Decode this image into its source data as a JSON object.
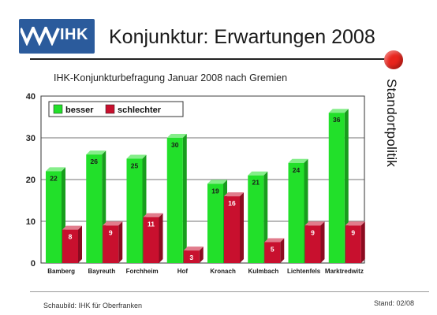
{
  "header": {
    "logo_text": "IHK",
    "title": "Konjunktur: Erwartungen 2008",
    "side_label": "Standortpolitik"
  },
  "colors": {
    "besser": "#22e02a",
    "schlechter": "#c8102e",
    "accent_dot": "#e8241c",
    "logo_bg": "#2b5b9c"
  },
  "chart_data": {
    "type": "bar",
    "title": "IHK-Konjunkturbefragung Januar 2008 nach Gremien",
    "categories": [
      "Bamberg",
      "Bayreuth",
      "Forchheim",
      "Hof",
      "Kronach",
      "Kulmbach",
      "Lichtenfels",
      "Marktredwitz"
    ],
    "series": [
      {
        "name": "besser",
        "values": [
          22,
          26,
          25,
          30,
          19,
          21,
          24,
          36
        ]
      },
      {
        "name": "schlechter",
        "values": [
          8,
          9,
          11,
          3,
          16,
          5,
          9,
          9
        ]
      }
    ],
    "ylim": [
      0,
      40
    ],
    "yticks": [
      0,
      10,
      20,
      30,
      40
    ],
    "grid": true,
    "legend_position": "top-left",
    "bar_style": "3d"
  },
  "footer": {
    "source": "Schaubild: IHK für Oberfranken",
    "stand": "Stand: 02/08"
  }
}
